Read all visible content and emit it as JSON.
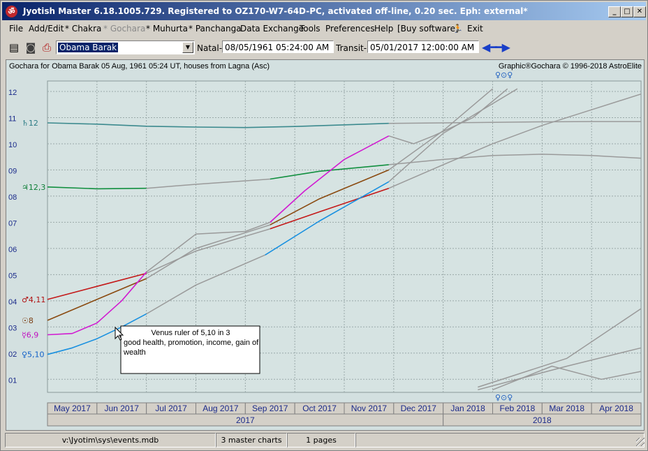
{
  "window": {
    "title": "Jyotish Master 6.18.1005.729. Registered to OZ170-W7-64D-PC, activated off-line, 0.20 sec. Eph: external*",
    "app_icon": "om-icon",
    "controls": [
      "_",
      "□",
      "✕"
    ]
  },
  "menu": [
    {
      "label": "File",
      "enabled": true
    },
    {
      "label": "Add/Edit",
      "enabled": true
    },
    {
      "label": "* Chakra",
      "enabled": true
    },
    {
      "label": "* Gochara",
      "enabled": false
    },
    {
      "label": "* Muhurta",
      "enabled": true
    },
    {
      "label": "* Panchanga",
      "enabled": true
    },
    {
      "label": "Data Exchange",
      "enabled": true
    },
    {
      "label": "Tools",
      "enabled": true
    },
    {
      "label": "Preferences",
      "enabled": true
    },
    {
      "label": "Help",
      "enabled": true
    },
    {
      "label": "[Buy software]",
      "enabled": true
    },
    {
      "label": "Exit",
      "enabled": true,
      "icon": "running-man-icon"
    }
  ],
  "toolbar": {
    "icons": [
      "save-icon",
      "camera-icon",
      "printer-icon"
    ],
    "chart_select": "Obama Barak",
    "natal_label": "Natal->",
    "natal_value": "08/05/1961   05:24:00 AM",
    "transit_label": "Transit->",
    "transit_value": "05/01/2017   12:00:00 AM",
    "prev_icon": "arrow-left-icon",
    "next_icon": "arrow-right-icon"
  },
  "chart_data": {
    "type": "line",
    "header_left": "Gochara for Obama Barak 05 Aug, 1961 05:24 UT, houses from Lagna (Asc)",
    "header_right": "Graphic®Gochara © 1996-2018 AstroElite",
    "top_symbols": "♀⊙♀",
    "bottom_symbols": "♀⊙♀",
    "y_ticks": [
      "12",
      "11",
      "10",
      "09",
      "08",
      "07",
      "06",
      "05",
      "04",
      "03",
      "02",
      "01"
    ],
    "ylim": [
      0.5,
      12.4
    ],
    "xlim": [
      0,
      12
    ],
    "months": [
      "May 2017",
      "Jun 2017",
      "Jul 2017",
      "Aug 2017",
      "Sep 2017",
      "Oct 2017",
      "Nov 2017",
      "Dec 2017",
      "Jan 2018",
      "Feb 2018",
      "Mar 2018",
      "Apr 2018"
    ],
    "years": [
      {
        "label": "2017",
        "from": 0,
        "to": 8
      },
      {
        "label": "2018",
        "from": 8,
        "to": 12
      }
    ],
    "series": [
      {
        "name": "♄12",
        "color": "#3c8a8e",
        "label_color": "#2e7d86",
        "y0": 10.8,
        "x": [
          0,
          1,
          2,
          3,
          4,
          5,
          6.9
        ],
        "y": [
          10.8,
          10.75,
          10.67,
          10.64,
          10.62,
          10.66,
          10.78
        ],
        "grey_x": [
          6.9,
          8,
          9,
          10,
          11,
          12
        ],
        "grey_y": [
          10.78,
          10.8,
          10.82,
          10.84,
          10.85,
          10.85
        ]
      },
      {
        "name": "♃12,3",
        "color": "#118f3f",
        "label_color": "#11803a",
        "y0": 8.35,
        "x": [
          0,
          1,
          2
        ],
        "y": [
          8.35,
          8.28,
          8.3
        ],
        "grey_x": [
          2,
          3,
          4.5
        ],
        "grey_y": [
          8.3,
          8.45,
          8.65
        ],
        "x2": [
          4.5,
          5.5,
          6.9
        ],
        "y2": [
          8.65,
          8.95,
          9.2
        ],
        "grey2_x": [
          6.9,
          8,
          9,
          10,
          11,
          12
        ],
        "grey2_y": [
          9.2,
          9.4,
          9.55,
          9.6,
          9.55,
          9.45
        ]
      },
      {
        "name": "♂4,11",
        "color": "#c41818",
        "label_color": "#b01010",
        "y0": 4.05,
        "x": [
          0,
          1,
          2
        ],
        "y": [
          4.05,
          4.55,
          5.05
        ],
        "grey_x": [
          2,
          3,
          4.5
        ],
        "grey_y": [
          5.05,
          5.9,
          6.75
        ],
        "x2": [
          4.5,
          5.5,
          6.9
        ],
        "y2": [
          6.75,
          7.4,
          8.3
        ],
        "grey2_x": [
          6.9,
          8,
          9,
          10,
          11,
          12
        ],
        "grey2_y": [
          8.3,
          9.2,
          10.0,
          10.7,
          11.3,
          11.9
        ]
      },
      {
        "name": "☉8",
        "color": "#8a4a10",
        "label_color": "#7b3f14",
        "y0": 3.25,
        "x": [
          0,
          1,
          2
        ],
        "y": [
          3.25,
          4.05,
          4.85
        ],
        "grey_x": [
          2,
          3,
          4.5
        ],
        "grey_y": [
          4.85,
          6.0,
          6.9
        ],
        "x2": [
          4.5,
          5.5,
          6.9
        ],
        "y2": [
          6.9,
          7.9,
          9.0
        ],
        "grey2_x": [
          6.9,
          8,
          9
        ],
        "grey2_y": [
          9.0,
          10.5,
          12.1
        ]
      },
      {
        "name": "☿6,9",
        "color": "#d11ad1",
        "label_color": "#c010c0",
        "y0": 2.7,
        "x": [
          0,
          0.5,
          1,
          1.5,
          2
        ],
        "y": [
          2.7,
          2.75,
          3.15,
          4.0,
          5.1
        ],
        "grey_x": [
          2,
          3,
          4,
          4.5
        ],
        "grey_y": [
          5.1,
          6.55,
          6.65,
          7.0
        ],
        "x2": [
          4.5,
          5.2,
          6,
          6.9
        ],
        "y2": [
          7.0,
          8.2,
          9.4,
          10.3
        ],
        "grey2_x": [
          6.9,
          7.4,
          7.8,
          8.6,
          9.3
        ],
        "grey2_y": [
          10.3,
          10.0,
          10.3,
          11.0,
          12.1
        ]
      },
      {
        "name": "♀5,10",
        "color": "#1890e0",
        "label_color": "#1060c8",
        "y0": 1.95,
        "x": [
          0,
          0.5,
          1,
          1.5,
          2
        ],
        "y": [
          1.95,
          2.2,
          2.55,
          3.0,
          3.5
        ],
        "grey_x": [
          2,
          3,
          4.4
        ],
        "grey_y": [
          3.5,
          4.6,
          5.75
        ],
        "x2": [
          4.4,
          5.5,
          6.9
        ],
        "y2": [
          5.75,
          7.05,
          8.55
        ],
        "grey2_x": [
          6.9,
          8,
          9.5
        ],
        "grey2_y": [
          8.55,
          10.4,
          12.1
        ]
      }
    ],
    "low_grey": [
      {
        "x": [
          8.7,
          10.5,
          12
        ],
        "y": [
          0.7,
          1.8,
          3.7
        ]
      },
      {
        "x": [
          8.7,
          10.5,
          12
        ],
        "y": [
          0.6,
          1.5,
          2.2
        ]
      },
      {
        "x": [
          9.0,
          10.2,
          11.2,
          12
        ],
        "y": [
          0.6,
          1.5,
          1.0,
          1.3
        ]
      }
    ]
  },
  "tooltip": {
    "line1": "Venus ruler of 5,10 in 3",
    "line2": "good health, promotion, income, gain of wealth"
  },
  "status": {
    "path": "v:\\Jyotim\\sys\\events.mdb",
    "charts": "3 master charts",
    "pages": "1 pages"
  }
}
